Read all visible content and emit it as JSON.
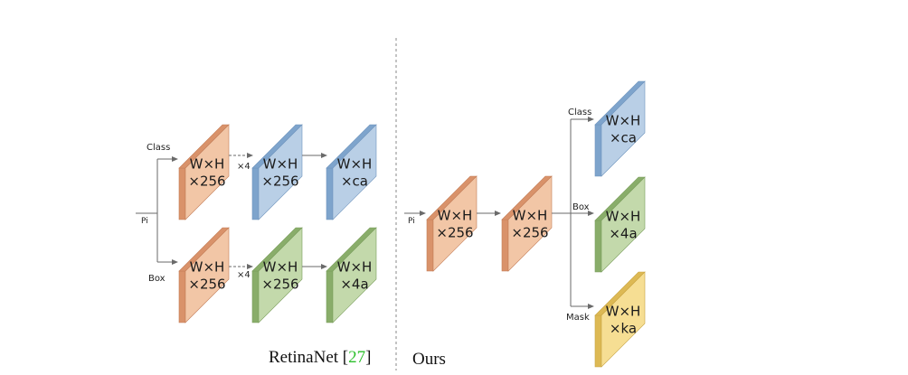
{
  "colors": {
    "orange": {
      "face": "#f2c6a6",
      "side": "#d9926a",
      "edge": "#c47e58"
    },
    "blue": {
      "face": "#b9cfe6",
      "side": "#7ea4cc",
      "edge": "#6f94bd"
    },
    "green": {
      "face": "#c3d9ab",
      "side": "#89ad6a",
      "edge": "#7a9e5c"
    },
    "yellow": {
      "face": "#f6de93",
      "side": "#ddb954",
      "edge": "#c9a542"
    }
  },
  "retinanet": {
    "input_label": "Pi",
    "class_label": "Class",
    "box_label": "Box",
    "repeat_top": "×4",
    "repeat_bottom": "×4",
    "class_branch": {
      "map1": [
        "W×H",
        "×256"
      ],
      "map2": [
        "W×H",
        "×256"
      ],
      "map3": [
        "W×H",
        "×ca"
      ]
    },
    "box_branch": {
      "map1": [
        "W×H",
        "×256"
      ],
      "map2": [
        "W×H",
        "×256"
      ],
      "map3": [
        "W×H",
        "×4a"
      ]
    },
    "caption_text": "RetinaNet [",
    "caption_ref": "27",
    "caption_close": "]"
  },
  "ours": {
    "input_label": "Pi",
    "shared_map1": [
      "W×H",
      "×256"
    ],
    "shared_map2": [
      "W×H",
      "×256"
    ],
    "class_label": "Class",
    "box_label": "Box",
    "mask_label": "Mask",
    "class_out": [
      "W×H",
      "×ca"
    ],
    "box_out": [
      "W×H",
      "×4a"
    ],
    "mask_out": [
      "W×H",
      "×ka"
    ],
    "caption": "Ours"
  }
}
